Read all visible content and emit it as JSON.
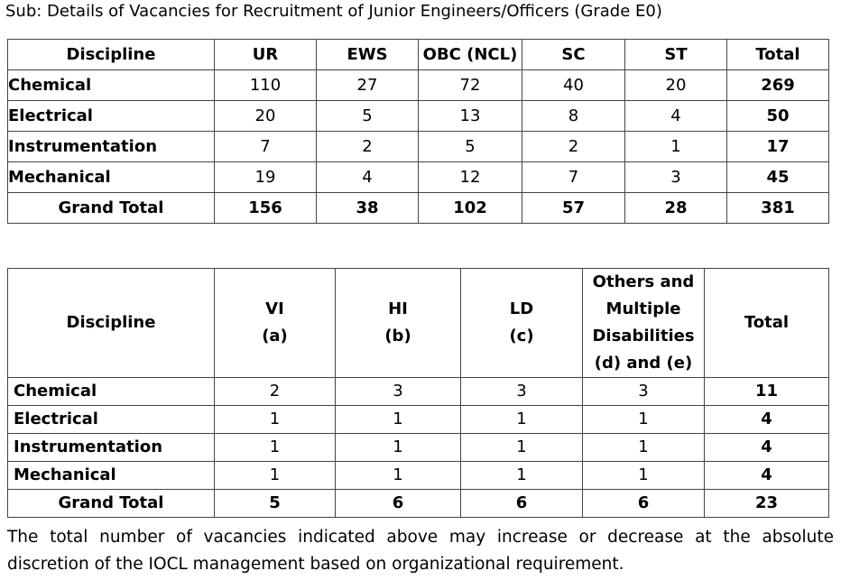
{
  "title": "Sub: Details of Vacancies for Recruitment of Junior Engineers/Officers (Grade E0)",
  "table1": {
    "header": [
      "Discipline",
      "UR",
      "EWS",
      "OBC (NCL)",
      "SC",
      "ST",
      "Total"
    ],
    "rows": [
      [
        "Chemical",
        110,
        27,
        72,
        40,
        20,
        269
      ],
      [
        "Electrical",
        20,
        5,
        13,
        8,
        4,
        50
      ],
      [
        "Instrumentation",
        7,
        2,
        5,
        2,
        1,
        17
      ],
      [
        "Mechanical",
        19,
        4,
        12,
        7,
        3,
        45
      ],
      [
        "Grand Total",
        156,
        38,
        102,
        57,
        28,
        381
      ]
    ]
  },
  "table2": {
    "header": [
      [
        "Discipline"
      ],
      [
        "VI",
        "(a)"
      ],
      [
        "HI",
        "(b)"
      ],
      [
        "LD",
        "(c)"
      ],
      [
        "Others and",
        "Multiple",
        "Disabilities",
        "(d) and (e)"
      ],
      [
        "Total"
      ]
    ],
    "rows": [
      [
        "Chemical",
        2,
        3,
        3,
        3,
        11
      ],
      [
        "Electrical",
        1,
        1,
        1,
        1,
        4
      ],
      [
        "Instrumentation",
        1,
        1,
        1,
        1,
        4
      ],
      [
        "Mechanical",
        1,
        1,
        1,
        1,
        4
      ],
      [
        "Grand Total",
        5,
        6,
        6,
        6,
        23
      ]
    ]
  },
  "footer": "The total number of vacancies indicated above may increase or decrease at the absolute discretion of the IOCL management based on organizational requirement."
}
